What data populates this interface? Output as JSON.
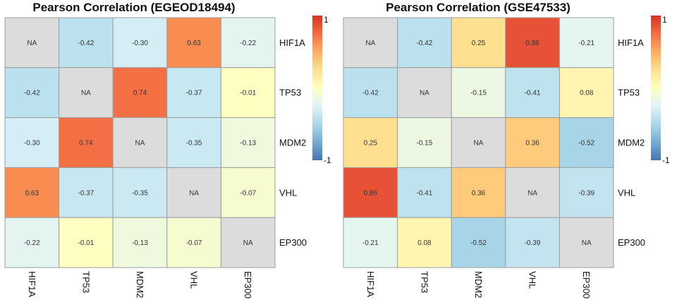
{
  "chart_data": [
    {
      "type": "heatmap",
      "title": "Pearson Correlation (EGEOD18494)",
      "rows": [
        "HIF1A",
        "TP53",
        "MDM2",
        "VHL",
        "EP300"
      ],
      "cols": [
        "HIF1A",
        "TP53",
        "MDM2",
        "VHL",
        "EP300"
      ],
      "values": [
        [
          null,
          -0.42,
          -0.3,
          0.63,
          -0.22
        ],
        [
          -0.42,
          null,
          0.74,
          -0.37,
          -0.01
        ],
        [
          -0.3,
          0.74,
          null,
          -0.35,
          -0.13
        ],
        [
          0.63,
          -0.37,
          -0.35,
          null,
          -0.07
        ],
        [
          -0.22,
          -0.01,
          -0.13,
          -0.07,
          null
        ]
      ],
      "labels": [
        [
          "NA",
          "-0.42",
          "-0.30",
          "0.63",
          "-0.22"
        ],
        [
          "-0.42",
          "NA",
          "0.74",
          "-0.37",
          "-0.01"
        ],
        [
          "-0.30",
          "0.74",
          "NA",
          "-0.35",
          "-0.13"
        ],
        [
          "0.63",
          "-0.37",
          "-0.35",
          "NA",
          "-0.07"
        ],
        [
          "-0.22",
          "-0.01",
          "-0.13",
          "-0.07",
          "NA"
        ]
      ],
      "legend": {
        "max_label": "1",
        "min_label": "-1",
        "range": [
          -1,
          1
        ]
      }
    },
    {
      "type": "heatmap",
      "title": "Pearson Correlation (GSE47533)",
      "rows": [
        "HIF1A",
        "TP53",
        "MDM2",
        "VHL",
        "EP300"
      ],
      "cols": [
        "HIF1A",
        "TP53",
        "MDM2",
        "VHL",
        "EP300"
      ],
      "values": [
        [
          null,
          -0.42,
          0.25,
          0.86,
          -0.21
        ],
        [
          -0.42,
          null,
          -0.15,
          -0.41,
          0.08
        ],
        [
          0.25,
          -0.15,
          null,
          0.36,
          -0.52
        ],
        [
          0.86,
          -0.41,
          0.36,
          null,
          -0.39
        ],
        [
          -0.21,
          0.08,
          -0.52,
          -0.39,
          null
        ]
      ],
      "labels": [
        [
          "NA",
          "-0.42",
          "0.25",
          "0.86",
          "-0.21"
        ],
        [
          "-0.42",
          "NA",
          "-0.15",
          "-0.41",
          "0.08"
        ],
        [
          "0.25",
          "-0.15",
          "NA",
          "0.36",
          "-0.52"
        ],
        [
          "0.86",
          "-0.41",
          "0.36",
          "NA",
          "-0.39"
        ],
        [
          "-0.21",
          "0.08",
          "-0.52",
          "-0.39",
          "NA"
        ]
      ],
      "legend": {
        "max_label": "1",
        "min_label": "-1",
        "range": [
          -1,
          1
        ]
      }
    }
  ],
  "colors": {
    "na": "#dcdcdc",
    "border": "#9e9e9e",
    "scale": [
      "#4575b4",
      "#74add1",
      "#abd9e9",
      "#e0f3f8",
      "#ffffbf",
      "#fee090",
      "#fdae61",
      "#f46d43",
      "#d73027"
    ]
  }
}
